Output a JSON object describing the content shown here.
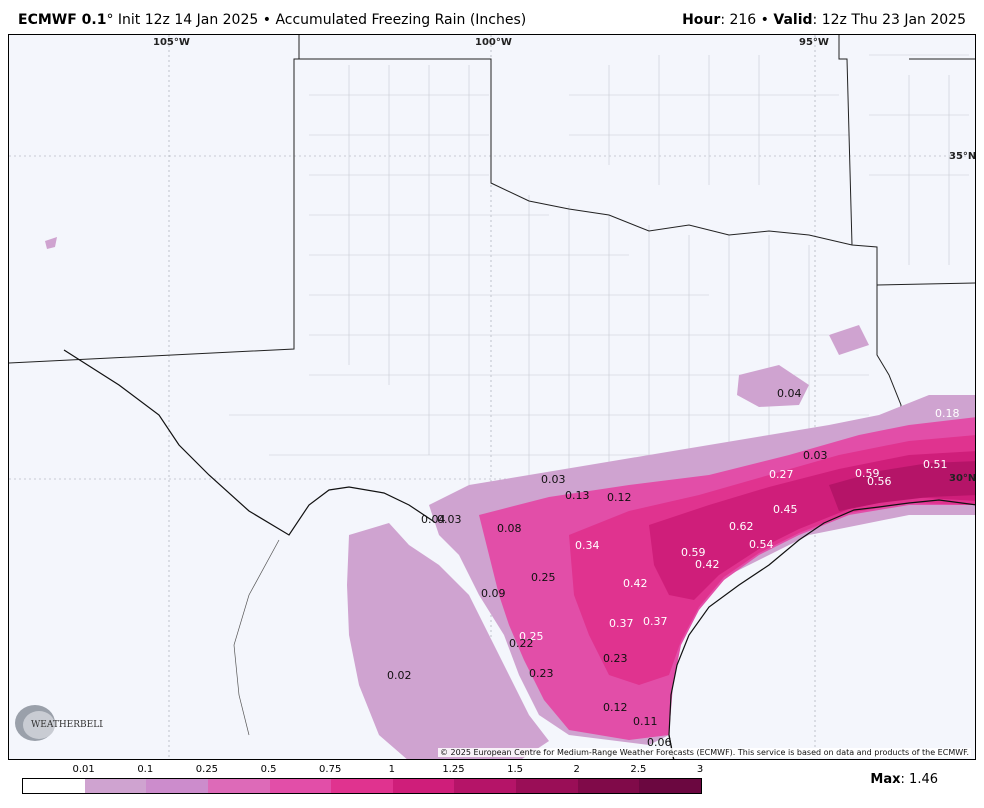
{
  "header": {
    "model": "ECMWF 0.1",
    "degree": "°",
    "init": "Init 12z 14 Jan 2025",
    "bullet": "•",
    "product": "Accumulated Freezing Rain (Inches)",
    "hour_label": "Hour",
    "hour_value": "216",
    "valid_label": "Valid",
    "valid_value": "12z Thu 23 Jan 2025"
  },
  "map": {
    "graticule_labels": [
      "105°W",
      "100°W",
      "95°W",
      "35°N",
      "30°N"
    ],
    "value_labels": [
      "0.04",
      "0.18",
      "0.03",
      "0.27",
      "0.59",
      "0.51",
      "0.56",
      "0.03",
      "0.13",
      "0.12",
      "0.45",
      "0.04",
      "0.03",
      "0.08",
      "0.62",
      "0.34",
      "0.54",
      "0.59",
      "0.42",
      "0.42",
      "0.25",
      "0.09",
      "0.37",
      "0.37",
      "0.25",
      "0.22",
      "0.23",
      "0.02",
      "0.23",
      "0.12",
      "0.11",
      "0.06"
    ],
    "logo_text": "WEATHERBELL",
    "credit": "© 2025 European Centre for Medium-Range Weather Forecasts (ECMWF). This service is based on data and products of the ECMWF."
  },
  "legend": {
    "ticks": [
      "0.01",
      "0.1",
      "0.25",
      "0.5",
      "0.75",
      "1",
      "1.25",
      "1.5",
      "2",
      "2.5",
      "3"
    ],
    "colors": [
      "#ffffff",
      "#cfa3d0",
      "#cc8ccc",
      "#dd6ab8",
      "#e24ea8",
      "#e0338f",
      "#cf1e7a",
      "#b51468",
      "#9a0e57",
      "#800a49",
      "#6b0740"
    ]
  },
  "max_label": "Max",
  "max_value": "1.46"
}
